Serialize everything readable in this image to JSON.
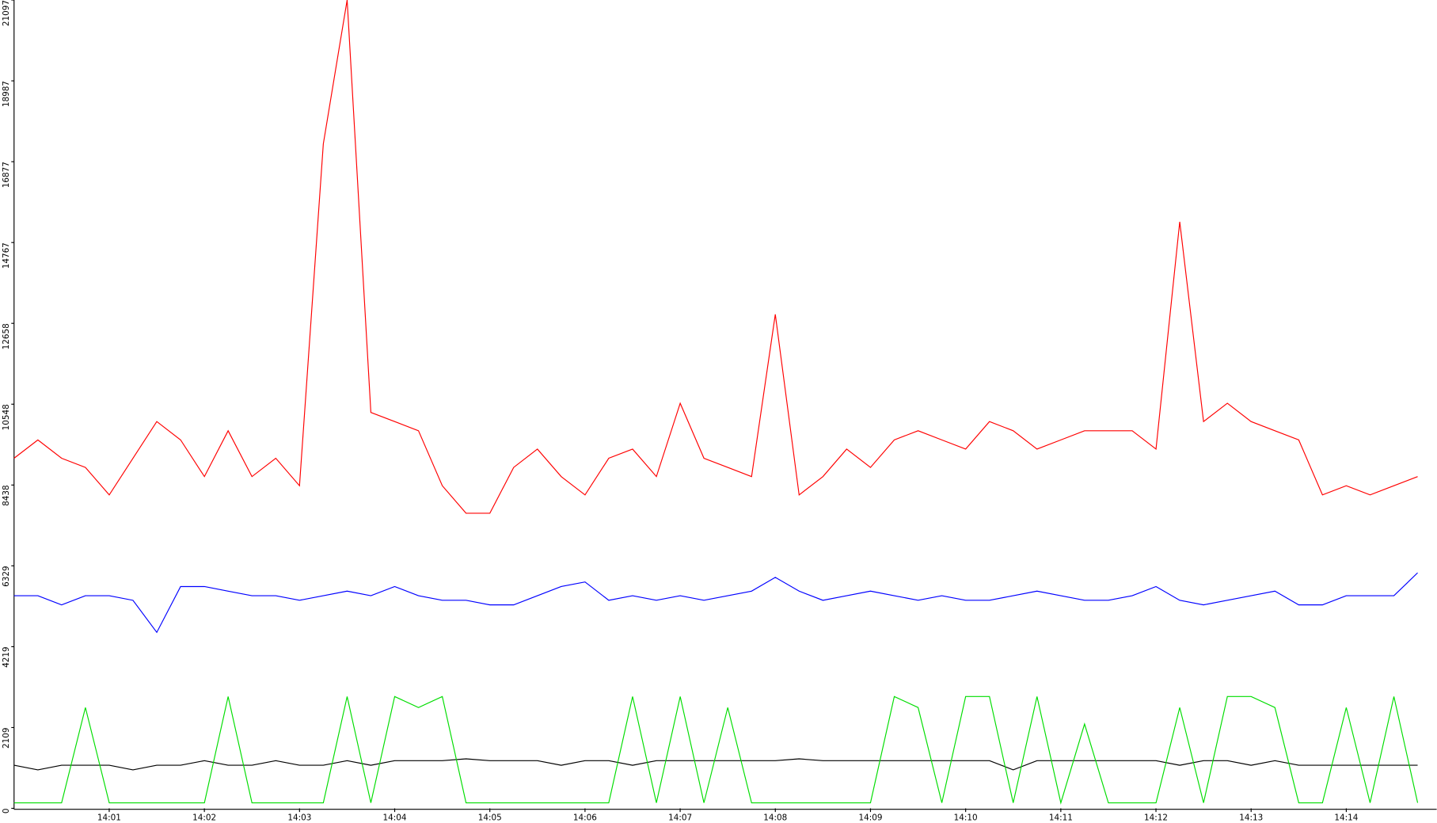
{
  "chart_data": {
    "type": "line",
    "x": [
      0,
      0.25,
      0.5,
      0.75,
      1,
      1.25,
      1.5,
      1.75,
      2,
      2.25,
      2.5,
      2.75,
      3,
      3.25,
      3.5,
      3.75,
      4,
      4.25,
      4.5,
      4.75,
      5,
      5.25,
      5.5,
      5.75,
      6,
      6.25,
      6.5,
      6.75,
      7,
      7.25,
      7.5,
      7.75,
      8,
      8.25,
      8.5,
      8.75,
      9,
      9.25,
      9.5,
      9.75,
      10,
      10.25,
      10.5,
      10.75,
      11,
      11.25,
      11.5,
      11.75,
      12,
      12.25,
      12.5,
      12.75,
      13,
      13.25,
      13.5,
      13.75,
      14,
      14.25,
      14.5,
      14.75
    ],
    "xlim": [
      0,
      14.95
    ],
    "xticks": [
      {
        "value": 1,
        "label": "14:01"
      },
      {
        "value": 2,
        "label": "14:02"
      },
      {
        "value": 3,
        "label": "14:03"
      },
      {
        "value": 4,
        "label": "14:04"
      },
      {
        "value": 5,
        "label": "14:05"
      },
      {
        "value": 6,
        "label": "14:06"
      },
      {
        "value": 7,
        "label": "14:07"
      },
      {
        "value": 8,
        "label": "14:08"
      },
      {
        "value": 9,
        "label": "14:09"
      },
      {
        "value": 10,
        "label": "14:10"
      },
      {
        "value": 11,
        "label": "14:11"
      },
      {
        "value": 12,
        "label": "14:12"
      },
      {
        "value": 13,
        "label": "14:13"
      },
      {
        "value": 14,
        "label": "14:14"
      }
    ],
    "ylim": [
      0,
      21097
    ],
    "yticks": [
      0,
      2109,
      4219,
      6329,
      8438,
      10548,
      12658,
      14767,
      16877,
      18987,
      21097
    ],
    "grid": false,
    "series": [
      {
        "color": "#ff0000",
        "values": [
          9137,
          9616,
          9137,
          8898,
          8181,
          9137,
          10094,
          9616,
          8659,
          9855,
          8659,
          9137,
          8420,
          17342,
          21097,
          10333,
          10094,
          9855,
          8420,
          7702,
          7702,
          8898,
          9377,
          8659,
          8181,
          9137,
          9377,
          8659,
          10572,
          9137,
          8898,
          8659,
          12893,
          8181,
          8659,
          9377,
          8898,
          9616,
          9855,
          9616,
          9377,
          10094,
          9855,
          9377,
          9616,
          9855,
          9855,
          9855,
          9377,
          15309,
          10094,
          10572,
          10094,
          9855,
          9616,
          8181,
          8420,
          8181,
          8420,
          8659
        ]
      },
      {
        "color": "#0000ff",
        "values": [
          5549,
          5549,
          5310,
          5549,
          5549,
          5430,
          4593,
          5789,
          5789,
          5669,
          5549,
          5549,
          5430,
          5549,
          5669,
          5549,
          5789,
          5549,
          5430,
          5430,
          5310,
          5310,
          5549,
          5789,
          5908,
          5430,
          5549,
          5430,
          5549,
          5430,
          5549,
          5669,
          6028,
          5669,
          5430,
          5549,
          5669,
          5549,
          5430,
          5549,
          5430,
          5430,
          5549,
          5669,
          5549,
          5430,
          5430,
          5549,
          5789,
          5430,
          5310,
          5430,
          5549,
          5669,
          5310,
          5310,
          5549,
          5549,
          5549,
          6147
        ]
      },
      {
        "color": "#000000",
        "values": [
          1124,
          1005,
          1124,
          1124,
          1124,
          1005,
          1124,
          1124,
          1244,
          1124,
          1124,
          1244,
          1124,
          1124,
          1244,
          1124,
          1244,
          1244,
          1244,
          1292,
          1244,
          1244,
          1244,
          1124,
          1244,
          1244,
          1124,
          1244,
          1244,
          1244,
          1244,
          1244,
          1244,
          1292,
          1244,
          1244,
          1244,
          1244,
          1244,
          1244,
          1244,
          1244,
          1005,
          1244,
          1244,
          1244,
          1244,
          1244,
          1244,
          1124,
          1244,
          1244,
          1124,
          1244,
          1124,
          1124,
          1124,
          1124,
          1124,
          1124
        ]
      },
      {
        "color": "#00dd00",
        "values": [
          144,
          144,
          144,
          2631,
          144,
          144,
          144,
          144,
          144,
          2918,
          144,
          144,
          144,
          144,
          2918,
          144,
          2918,
          2631,
          2918,
          144,
          144,
          144,
          144,
          144,
          144,
          144,
          2918,
          144,
          2918,
          144,
          2631,
          144,
          144,
          144,
          144,
          144,
          144,
          2918,
          2631,
          144,
          2918,
          2918,
          144,
          2918,
          144,
          2200,
          144,
          144,
          144,
          2631,
          144,
          2918,
          2918,
          2631,
          144,
          144,
          2631,
          144,
          2918,
          144
        ]
      }
    ]
  }
}
